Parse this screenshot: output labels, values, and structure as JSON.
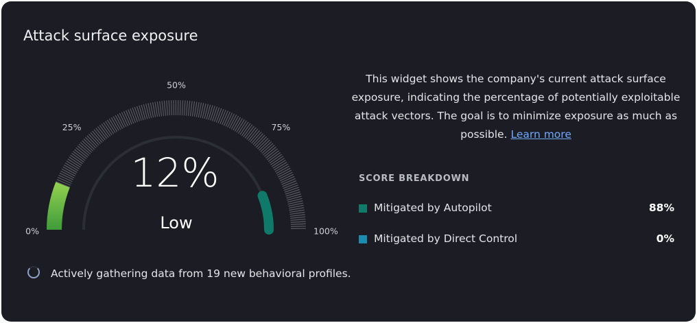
{
  "header": {
    "title": "Attack surface exposure"
  },
  "gauge": {
    "value": 12,
    "value_label": "12%",
    "status": "Low",
    "ticks": [
      {
        "value": 0,
        "label": "0%"
      },
      {
        "value": 25,
        "label": "25%"
      },
      {
        "value": 50,
        "label": "50%"
      },
      {
        "value": 75,
        "label": "75%"
      },
      {
        "value": 100,
        "label": "100%"
      }
    ]
  },
  "description": {
    "text": "This widget shows the company's current attack surface exposure, indicating the percentage of potentially exploitable attack vectors. The goal is to minimize exposure as much as possible.",
    "link": "Learn more"
  },
  "breakdown": {
    "title": "SCORE BREAKDOWN",
    "rows": [
      {
        "name": "Mitigated by Autopilot",
        "color": "#0f7a69",
        "value": 88,
        "value_label": "88%"
      },
      {
        "name": "Mitigated by Direct Control",
        "color": "#1b8bb0",
        "value": 0,
        "value_label": "0%"
      }
    ]
  },
  "footer": {
    "text": "Actively gathering data from 19 new behavioral profiles."
  }
}
